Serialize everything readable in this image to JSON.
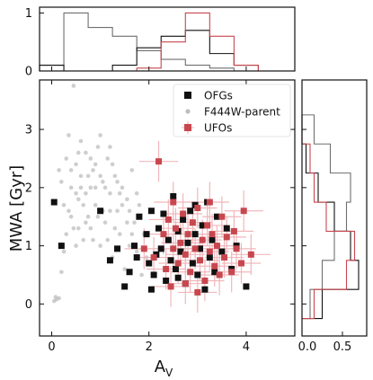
{
  "chart_data": {
    "type": "scatter",
    "xlabel": "A",
    "xlabel_sub": "V",
    "ylabel": "MWA [Gyr]",
    "xlim": [
      -0.25,
      5.0
    ],
    "ylim": [
      -0.55,
      3.85
    ],
    "x_ticks": [
      0,
      2,
      4
    ],
    "y_ticks": [
      0,
      1,
      2,
      3
    ],
    "legend_position": "top-right",
    "legend": [
      {
        "label": "OFGs",
        "marker": "square",
        "color": "#111111"
      },
      {
        "label": "F444W-parent",
        "marker": "circle",
        "color": "#bdbdbd"
      },
      {
        "label": "UFOs",
        "marker": "square-errorbar",
        "color": "#c8474f"
      }
    ],
    "colors": {
      "ofg": "#111111",
      "parent": "#bdbdbd",
      "ufo": "#c8474f",
      "ufo_err": "#f0b7bb"
    },
    "series": [
      {
        "name": "F444W-parent",
        "marker": "circle",
        "points": [
          [
            0.05,
            0.05
          ],
          [
            0.1,
            0.08
          ],
          [
            0.08,
            0.12
          ],
          [
            0.15,
            0.1
          ],
          [
            0.2,
            0.55
          ],
          [
            0.25,
            0.9
          ],
          [
            0.3,
            1.2
          ],
          [
            0.35,
            1.6
          ],
          [
            0.4,
            2.0
          ],
          [
            0.45,
            1.3
          ],
          [
            0.5,
            2.4
          ],
          [
            0.55,
            1.8
          ],
          [
            0.6,
            2.2
          ],
          [
            0.65,
            1.1
          ],
          [
            0.7,
            2.6
          ],
          [
            0.75,
            1.5
          ],
          [
            0.8,
            2.0
          ],
          [
            0.85,
            2.3
          ],
          [
            0.9,
            1.7
          ],
          [
            0.95,
            2.7
          ],
          [
            1.0,
            1.0
          ],
          [
            1.05,
            2.1
          ],
          [
            1.1,
            1.4
          ],
          [
            1.15,
            2.5
          ],
          [
            1.2,
            1.9
          ],
          [
            1.25,
            0.8
          ],
          [
            1.3,
            2.2
          ],
          [
            1.35,
            1.6
          ],
          [
            1.4,
            1.2
          ],
          [
            1.45,
            2.0
          ],
          [
            1.5,
            0.6
          ],
          [
            1.55,
            1.8
          ],
          [
            1.6,
            1.0
          ],
          [
            1.65,
            2.3
          ],
          [
            1.7,
            1.4
          ],
          [
            1.75,
            0.9
          ],
          [
            1.8,
            1.7
          ],
          [
            1.85,
            0.5
          ],
          [
            1.9,
            1.2
          ],
          [
            1.95,
            0.8
          ],
          [
            0.2,
            2.1
          ],
          [
            0.3,
            2.5
          ],
          [
            0.5,
            1.0
          ],
          [
            0.6,
            2.8
          ],
          [
            0.7,
            1.9
          ],
          [
            0.8,
            1.3
          ],
          [
            0.9,
            2.4
          ],
          [
            1.0,
            2.9
          ],
          [
            1.1,
            2.0
          ],
          [
            1.2,
            1.6
          ],
          [
            0.4,
            1.5
          ],
          [
            0.55,
            2.6
          ],
          [
            0.75,
            2.2
          ],
          [
            0.95,
            1.5
          ],
          [
            1.15,
            1.1
          ],
          [
            1.35,
            2.1
          ],
          [
            1.55,
            1.4
          ],
          [
            1.75,
            1.9
          ],
          [
            0.65,
            1.7
          ],
          [
            0.85,
            1.1
          ],
          [
            0.45,
            3.75
          ],
          [
            0.35,
            2.9
          ],
          [
            1.25,
            2.4
          ],
          [
            1.45,
            1.7
          ],
          [
            1.65,
            1.2
          ],
          [
            0.25,
            1.7
          ],
          [
            0.15,
            2.3
          ],
          [
            0.5,
            1.9
          ],
          [
            0.7,
            1.4
          ],
          [
            0.9,
            2.0
          ],
          [
            1.05,
            1.6
          ],
          [
            1.3,
            1.3
          ],
          [
            0.6,
            2.0
          ],
          [
            0.8,
            2.5
          ],
          [
            1.0,
            2.2
          ],
          [
            0.4,
            2.3
          ],
          [
            0.55,
            1.3
          ],
          [
            1.2,
            2.7
          ],
          [
            1.4,
            1.9
          ],
          [
            1.6,
            1.6
          ]
        ]
      },
      {
        "name": "OFGs",
        "marker": "square",
        "points": [
          [
            0.05,
            1.75
          ],
          [
            0.2,
            1.0
          ],
          [
            1.0,
            1.6
          ],
          [
            1.2,
            0.75
          ],
          [
            1.35,
            0.95
          ],
          [
            1.5,
            0.3
          ],
          [
            1.6,
            0.55
          ],
          [
            1.7,
            1.0
          ],
          [
            1.75,
            0.8
          ],
          [
            1.8,
            1.5
          ],
          [
            1.95,
            1.2
          ],
          [
            2.0,
            0.7
          ],
          [
            2.05,
            0.25
          ],
          [
            2.1,
            0.5
          ],
          [
            2.15,
            0.85
          ],
          [
            2.2,
            1.3
          ],
          [
            2.25,
            0.95
          ],
          [
            2.3,
            1.55
          ],
          [
            2.35,
            0.4
          ],
          [
            2.4,
            1.1
          ],
          [
            2.45,
            0.75
          ],
          [
            2.5,
            1.85
          ],
          [
            2.55,
            0.6
          ],
          [
            2.6,
            1.25
          ],
          [
            2.65,
            0.9
          ],
          [
            2.7,
            1.45
          ],
          [
            2.75,
            0.35
          ],
          [
            2.8,
            1.05
          ],
          [
            2.85,
            1.6
          ],
          [
            2.9,
            0.7
          ],
          [
            2.95,
            1.2
          ],
          [
            3.0,
            0.5
          ],
          [
            3.05,
            0.95
          ],
          [
            3.1,
            1.35
          ],
          [
            3.15,
            0.25
          ],
          [
            3.2,
            1.75
          ],
          [
            3.25,
            0.8
          ],
          [
            3.3,
            1.1
          ],
          [
            3.35,
            0.55
          ],
          [
            3.4,
            1.5
          ],
          [
            3.5,
            0.9
          ],
          [
            3.6,
            1.3
          ],
          [
            3.7,
            0.6
          ],
          [
            3.8,
            1.0
          ],
          [
            4.0,
            0.3
          ],
          [
            2.05,
            1.6
          ],
          [
            2.6,
            0.45
          ],
          [
            2.95,
            1.7
          ]
        ]
      },
      {
        "name": "UFOs",
        "marker": "square",
        "error_x": 0.4,
        "error_y": 0.35,
        "points": [
          [
            2.2,
            2.45
          ],
          [
            1.9,
            0.95
          ],
          [
            2.1,
            0.8
          ],
          [
            2.3,
            1.2
          ],
          [
            2.35,
            0.6
          ],
          [
            2.4,
            1.45
          ],
          [
            2.5,
            0.95
          ],
          [
            2.55,
            1.3
          ],
          [
            2.6,
            0.7
          ],
          [
            2.65,
            1.05
          ],
          [
            2.7,
            1.55
          ],
          [
            2.75,
            0.85
          ],
          [
            2.8,
            1.2
          ],
          [
            2.85,
            0.55
          ],
          [
            2.9,
            1.4
          ],
          [
            2.95,
            0.95
          ],
          [
            3.0,
            1.65
          ],
          [
            3.05,
            0.75
          ],
          [
            3.1,
            1.1
          ],
          [
            3.15,
            0.4
          ],
          [
            3.2,
            1.35
          ],
          [
            3.25,
            0.9
          ],
          [
            3.3,
            1.2
          ],
          [
            3.35,
            0.65
          ],
          [
            3.4,
            1.0
          ],
          [
            3.5,
            1.5
          ],
          [
            3.55,
            0.8
          ],
          [
            3.6,
            1.15
          ],
          [
            3.7,
            0.55
          ],
          [
            3.75,
            1.25
          ],
          [
            3.8,
            0.95
          ],
          [
            3.9,
            0.7
          ],
          [
            4.1,
            0.85
          ],
          [
            3.95,
            1.6
          ],
          [
            2.45,
            0.3
          ],
          [
            2.75,
            0.35
          ],
          [
            3.0,
            0.2
          ],
          [
            3.45,
            0.5
          ],
          [
            2.5,
            1.75
          ],
          [
            3.25,
            1.75
          ]
        ]
      }
    ],
    "top_histogram": {
      "xlim": [
        -0.25,
        5.0
      ],
      "ylim": [
        0,
        1.1
      ],
      "y_ticks": [
        0,
        1
      ],
      "bins": [
        -0.25,
        0.25,
        0.75,
        1.25,
        1.75,
        2.25,
        2.75,
        3.25,
        3.75,
        4.25
      ],
      "series": [
        {
          "name": "F444W-parent",
          "color": "#6f6f6f",
          "values": [
            0.1,
            1.0,
            0.75,
            0.6,
            0.35,
            0.2,
            0.1,
            0.05,
            0.0
          ]
        },
        {
          "name": "OFGs",
          "color": "#111111",
          "values": [
            0.1,
            0.0,
            0.0,
            0.1,
            0.4,
            0.6,
            0.7,
            0.3,
            0.1
          ]
        },
        {
          "name": "UFOs",
          "color": "#c8474f",
          "values": [
            0.0,
            0.0,
            0.0,
            0.0,
            0.05,
            0.5,
            1.0,
            0.6,
            0.1
          ]
        }
      ]
    },
    "right_histogram": {
      "xlim": [
        0,
        0.8
      ],
      "x_ticks": [
        0.0,
        0.5
      ],
      "x_tick_labels": [
        "0.0",
        "0.5"
      ],
      "bins": [
        -0.25,
        0.25,
        0.75,
        1.25,
        1.75,
        2.25,
        2.75,
        3.25
      ],
      "series": [
        {
          "name": "F444W-parent",
          "color": "#6f6f6f",
          "values": [
            0.1,
            0.25,
            0.4,
            0.55,
            0.6,
            0.35,
            0.15
          ]
        },
        {
          "name": "OFGs",
          "color": "#111111",
          "values": [
            0.25,
            0.7,
            0.6,
            0.4,
            0.2,
            0.05,
            0.0
          ]
        },
        {
          "name": "UFOs",
          "color": "#c8474f",
          "values": [
            0.15,
            0.55,
            0.65,
            0.3,
            0.15,
            0.1,
            0.0
          ]
        }
      ]
    }
  }
}
